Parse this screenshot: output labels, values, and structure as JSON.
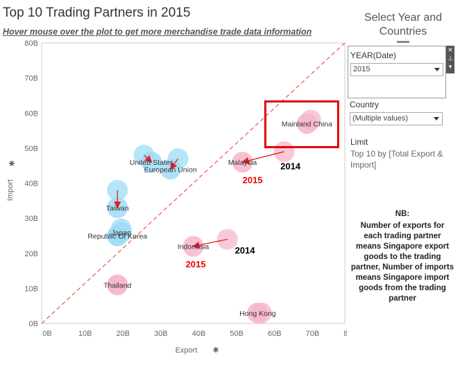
{
  "header": {
    "title": "Top 10 Trading Partners in 2015",
    "subtitle": "Hover mouse over the plot to get more  merchandise  trade data information"
  },
  "panel": {
    "title": "Select Year and Countries",
    "year_label": "YEAR(Date)",
    "year_value": "2015",
    "country_label": "Country",
    "country_value": "(Multiple values)",
    "limit_label": "Limit",
    "limit_text": "Top 10 by [Total Export & Import]",
    "nb_title": "NB:",
    "nb_text": "Number of exports for each trading partner means Singapore export goods to the trading partner, Number of imports means Singapore import goods from the trading partner"
  },
  "colors": {
    "export_dominant": "#f7b6cb",
    "import_dominant": "#9fdcf6",
    "arrow": "#e02020",
    "china_arrow": "#6a6ad0",
    "highlight": "#e00000",
    "diagonal": "#f05050"
  },
  "chart_data": {
    "type": "scatter",
    "xlabel": "Export",
    "ylabel": "Import",
    "xlim": [
      0,
      80
    ],
    "ylim": [
      0,
      80
    ],
    "xticks": [
      "0B",
      "10B",
      "20B",
      "30B",
      "40B",
      "50B",
      "60B",
      "70B",
      "80B"
    ],
    "yticks": [
      "0B",
      "10B",
      "20B",
      "30B",
      "40B",
      "50B",
      "60B",
      "70B",
      "80B"
    ],
    "reference_line": "y = x",
    "points": [
      {
        "label": "Mainland China",
        "x": 70,
        "y": 57,
        "x2014": 71,
        "y2014": 58,
        "group": "export"
      },
      {
        "label": "Malaysia",
        "x": 53,
        "y": 46,
        "x2014": 64,
        "y2014": 49,
        "group": "export"
      },
      {
        "label": "Indonesia",
        "x": 40,
        "y": 22,
        "x2014": 49,
        "y2014": 24,
        "group": "export"
      },
      {
        "label": "Hong Kong",
        "x": 57,
        "y": 3,
        "x2014": 58,
        "y2014": 3,
        "group": "export"
      },
      {
        "label": "Thailand",
        "x": 20,
        "y": 11,
        "x2014": 20,
        "y2014": 11,
        "group": "export"
      },
      {
        "label": "United States",
        "x": 29,
        "y": 46,
        "x2014": 27,
        "y2014": 48,
        "group": "import"
      },
      {
        "label": "European Union",
        "x": 34,
        "y": 44,
        "x2014": 36,
        "y2014": 47,
        "group": "import"
      },
      {
        "label": "Taiwan",
        "x": 20,
        "y": 33,
        "x2014": 20,
        "y2014": 38,
        "group": "import"
      },
      {
        "label": "Japan",
        "x": 21,
        "y": 26,
        "x2014": 21,
        "y2014": 27,
        "group": "import"
      },
      {
        "label": "Republic Of Korea",
        "x": 20,
        "y": 25,
        "x2014": 20,
        "y2014": 25,
        "group": "import"
      }
    ],
    "annotations": [
      {
        "text": "2014",
        "x": 63,
        "y": 44,
        "color": "black"
      },
      {
        "text": "2015",
        "x": 53,
        "y": 40,
        "color": "red"
      },
      {
        "text": "2014",
        "x": 51,
        "y": 20,
        "color": "black"
      },
      {
        "text": "2015",
        "x": 38,
        "y": 16,
        "color": "red"
      }
    ],
    "highlight_label": "Mainland China"
  }
}
